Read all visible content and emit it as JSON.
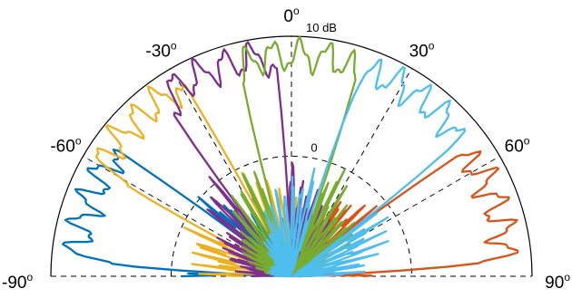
{
  "chart_data": {
    "type": "polar-line",
    "angle_range_deg": [
      -90,
      90
    ],
    "angle_ticks": [
      {
        "deg": 0,
        "num": "0",
        "sup": "o"
      },
      {
        "deg": -30,
        "num": "-30",
        "sup": "o"
      },
      {
        "deg": 30,
        "num": "30",
        "sup": "o"
      },
      {
        "deg": -60,
        "num": "-60",
        "sup": "o"
      },
      {
        "deg": 60,
        "num": "60",
        "sup": "o"
      },
      {
        "deg": -90,
        "num": "-90",
        "sup": "o"
      },
      {
        "deg": 90,
        "num": "90",
        "sup": "o"
      }
    ],
    "r_range_db": [
      -10,
      10
    ],
    "r_ticks": [
      {
        "value": 0,
        "label": "0"
      },
      {
        "value": 10,
        "label": "10 dB"
      }
    ],
    "series": [
      {
        "color": "#0072BD",
        "steer_deg": -70,
        "peak_db": 8.8
      },
      {
        "color": "#D95319",
        "steer_deg": 70,
        "peak_db": 8.8
      },
      {
        "color": "#EDB120",
        "steer_deg": -45,
        "peak_db": 9.2
      },
      {
        "color": "#7E2F8E",
        "steer_deg": -20,
        "peak_db": 9.3
      },
      {
        "color": "#77AC30",
        "steer_deg": 2,
        "peak_db": 9.3
      },
      {
        "color": "#4DBEEE",
        "steer_deg": 35,
        "peak_db": 9.2
      }
    ]
  }
}
